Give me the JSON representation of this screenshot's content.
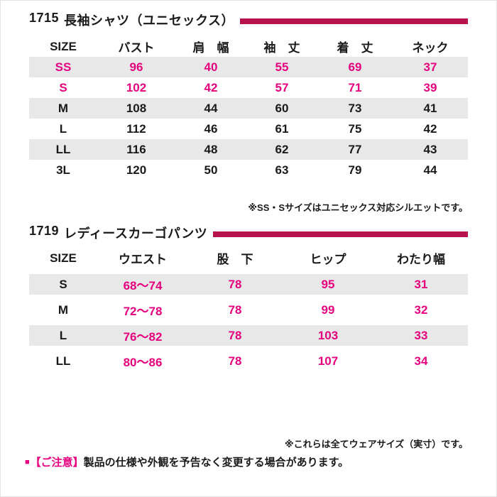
{
  "colors": {
    "accent_stripe": "#b5124e",
    "magenta_text": "#e6007e",
    "row_shade": "#e8e8e8"
  },
  "shirt_table": {
    "code": "1715",
    "title": "長袖シャツ（ユニセックス）",
    "headers": [
      "SIZE",
      "バスト",
      "肩　幅",
      "袖　丈",
      "着　丈",
      "ネック"
    ],
    "rows": [
      {
        "size": "SS",
        "values": [
          "96",
          "40",
          "55",
          "69",
          "37"
        ]
      },
      {
        "size": "S",
        "values": [
          "102",
          "42",
          "57",
          "71",
          "39"
        ]
      },
      {
        "size": "M",
        "values": [
          "108",
          "44",
          "60",
          "73",
          "41"
        ]
      },
      {
        "size": "L",
        "values": [
          "112",
          "46",
          "61",
          "75",
          "42"
        ]
      },
      {
        "size": "LL",
        "values": [
          "116",
          "48",
          "62",
          "77",
          "43"
        ]
      },
      {
        "size": "3L",
        "values": [
          "120",
          "50",
          "63",
          "79",
          "44"
        ]
      }
    ],
    "note": "※SS・Sサイズはユニセックス対応シルエットです。"
  },
  "pants_table": {
    "code": "1719",
    "title": "レディースカーゴパンツ",
    "headers": [
      "SIZE",
      "ウエスト",
      "股　下",
      "ヒップ",
      "わたり幅"
    ],
    "rows": [
      {
        "size": "S",
        "values": [
          "68〜74",
          "78",
          "95",
          "31"
        ]
      },
      {
        "size": "M",
        "values": [
          "72〜78",
          "78",
          "99",
          "32"
        ]
      },
      {
        "size": "L",
        "values": [
          "76〜82",
          "78",
          "103",
          "33"
        ]
      },
      {
        "size": "LL",
        "values": [
          "80〜86",
          "78",
          "107",
          "34"
        ]
      }
    ]
  },
  "footnotes": {
    "wear_size_note": "※これらは全てウェアサイズ（実寸）です。",
    "caution_bullet": "■",
    "caution_label": "【ご注意】",
    "caution_text": "製品の仕様や外観を予告なく変更する場合があります。"
  }
}
